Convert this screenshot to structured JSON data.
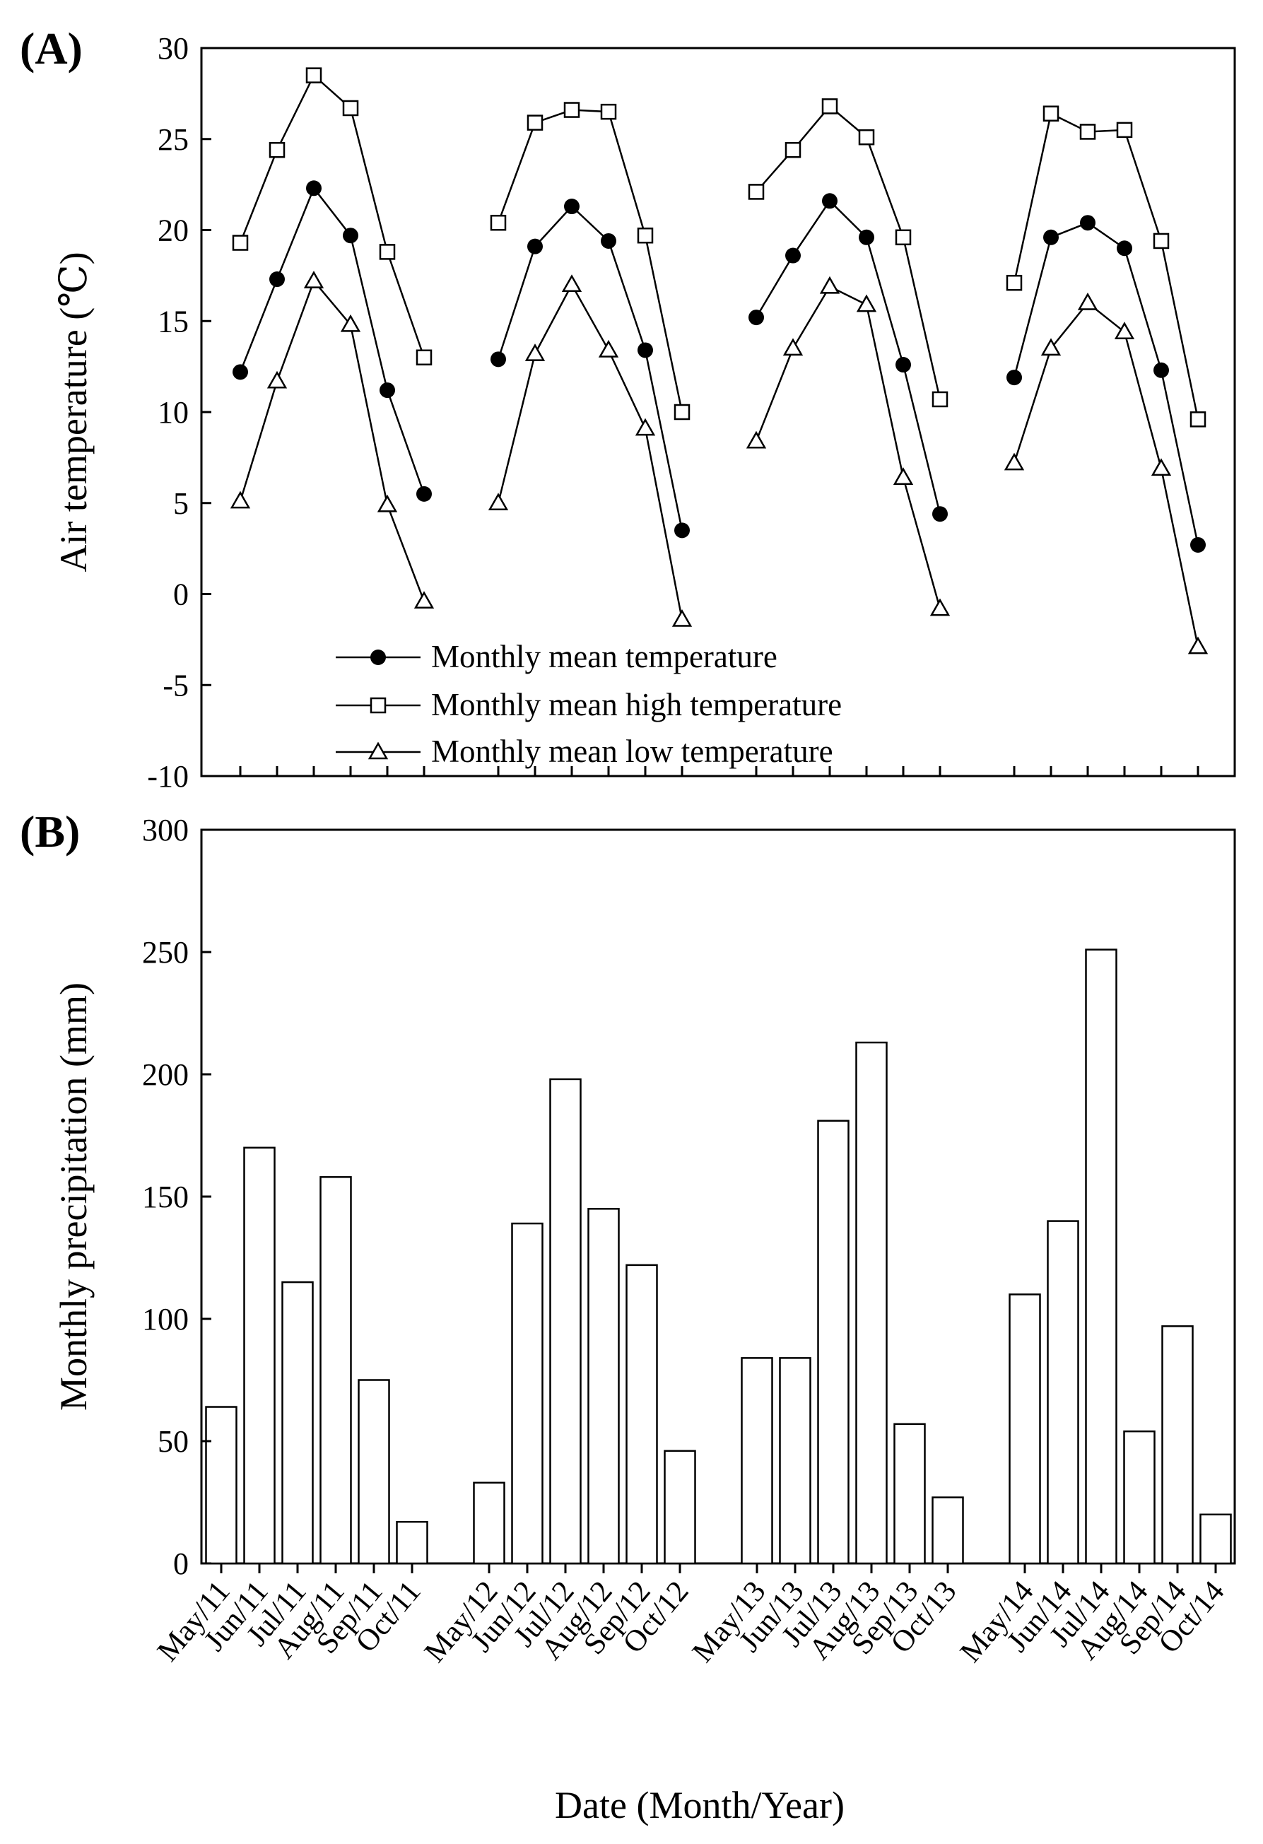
{
  "chart_data": [
    {
      "panel_label": "(A)",
      "type": "line",
      "ylabel": "Air temperature (℃)",
      "ylim": [
        -10,
        30
      ],
      "yticks": [
        "-10",
        "-5",
        "0",
        "5",
        "10",
        "15",
        "20",
        "25",
        "30"
      ],
      "categories": [
        "May/11",
        "Jun/11",
        "Jul/11",
        "Aug/11",
        "Sep/11",
        "Oct/11",
        "May/12",
        "Jun/12",
        "Jul/12",
        "Aug/12",
        "Sep/12",
        "Oct/12",
        "May/13",
        "Jun/13",
        "Jul/13",
        "Aug/13",
        "Sep/13",
        "Oct/13",
        "May/14",
        "Jun/14",
        "Jul/14",
        "Aug/14",
        "Sep/14",
        "Oct/14"
      ],
      "legend_position": "bottom-left",
      "series": [
        {
          "name": "Monthly mean temperature",
          "marker": "filled-circle",
          "values": [
            12.2,
            17.3,
            22.3,
            19.7,
            11.2,
            5.5,
            12.9,
            19.1,
            21.3,
            19.4,
            13.4,
            3.5,
            15.2,
            18.6,
            21.6,
            19.6,
            12.6,
            4.4,
            11.9,
            19.6,
            20.4,
            19.0,
            12.3,
            2.7
          ]
        },
        {
          "name": "Monthly mean high temperature",
          "marker": "open-square",
          "values": [
            19.3,
            24.4,
            28.5,
            26.7,
            18.8,
            13.0,
            20.4,
            25.9,
            26.6,
            26.5,
            19.7,
            10.0,
            22.1,
            24.4,
            26.8,
            25.1,
            19.6,
            10.7,
            17.1,
            26.4,
            25.4,
            25.5,
            19.4,
            9.6
          ]
        },
        {
          "name": "Monthly mean low temperature",
          "marker": "open-triangle",
          "values": [
            5.1,
            11.7,
            17.2,
            14.8,
            4.9,
            -0.4,
            5.0,
            13.2,
            17.0,
            13.4,
            9.1,
            -1.4,
            8.4,
            13.5,
            16.9,
            15.9,
            6.4,
            -0.8,
            7.2,
            13.5,
            16.0,
            14.4,
            6.9,
            -2.9
          ]
        }
      ]
    },
    {
      "panel_label": "(B)",
      "type": "bar",
      "ylabel": "Monthly precipitation (mm)",
      "xlabel": "Date (Month/Year)",
      "ylim": [
        0,
        300
      ],
      "yticks": [
        "0",
        "50",
        "100",
        "150",
        "200",
        "250",
        "300"
      ],
      "categories": [
        "May/11",
        "Jun/11",
        "Jul/11",
        "Aug/11",
        "Sep/11",
        "Oct/11",
        "May/12",
        "Jun/12",
        "Jul/12",
        "Aug/12",
        "Sep/12",
        "Oct/12",
        "May/13",
        "Jun/13",
        "Jul/13",
        "Aug/13",
        "Sep/13",
        "Oct/13",
        "May/14",
        "Jun/14",
        "Jul/14",
        "Aug/14",
        "Sep/14",
        "Oct/14"
      ],
      "values": [
        64,
        170,
        115,
        158,
        75,
        17,
        33,
        139,
        198,
        145,
        122,
        46,
        84,
        84,
        181,
        213,
        57,
        27,
        110,
        140,
        251,
        54,
        97,
        20
      ]
    }
  ]
}
